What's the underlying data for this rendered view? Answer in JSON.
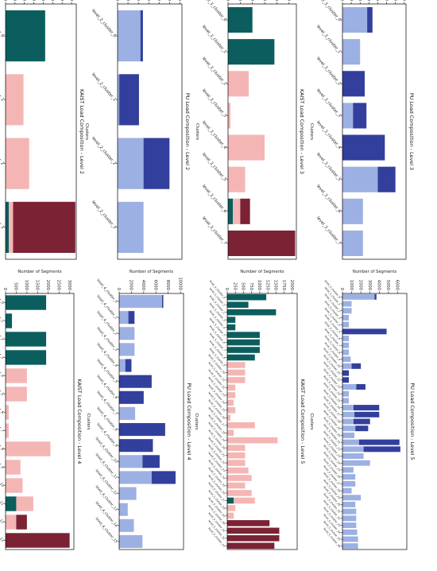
{
  "colors": {
    "teal": "#0c5e5e",
    "pink": "#f4b6b4",
    "maroon": "#7b2234",
    "lightblue": "#9db0e3",
    "darkblue": "#323f9c"
  },
  "chart_data": [
    {
      "id": "kaist-l2",
      "type": "bar",
      "title": "KAIST Load Composition - Level 2",
      "xlabel": "Clusters",
      "ylabel": "Number of Segments",
      "ylim": [
        0,
        7500
      ],
      "yticks": [
        1000,
        2000,
        3000,
        4000,
        5000,
        6000,
        7000
      ],
      "categories": [
        "level_2_cluster_0",
        "level_2_cluster_1",
        "level_2_cluster_2",
        "level_2_cluster_3"
      ],
      "series": [
        {
          "color": "#0c5e5e",
          "values": [
            4200,
            0,
            0,
            350
          ]
        },
        {
          "color": "#f4b6b4",
          "values": [
            0,
            1900,
            2500,
            450
          ]
        },
        {
          "color": "#7b2234",
          "values": [
            0,
            0,
            0,
            6600
          ]
        }
      ]
    },
    {
      "id": "pu-l2",
      "type": "bar",
      "title": "PU Load Composition - Level 2",
      "xlabel": "Clusters",
      "ylabel": "Number of Segments",
      "ylim": [
        0,
        31000
      ],
      "yticks": [
        5000,
        10000,
        15000,
        20000,
        25000,
        30000
      ],
      "categories": [
        "level_2_cluster_0",
        "level_2_cluster_1",
        "level_2_cluster_2",
        "level_2_cluster_3"
      ],
      "series": [
        {
          "color": "#9db0e3",
          "values": [
            11000,
            800,
            12500,
            12500
          ]
        },
        {
          "color": "#323f9c",
          "values": [
            1200,
            9500,
            12500,
            0
          ]
        }
      ]
    },
    {
      "id": "kaist-l3",
      "type": "bar",
      "title": "KAIST Load Composition - Level 3",
      "xlabel": "Clusters",
      "ylabel": "Number of Segments",
      "ylim": [
        0,
        5600
      ],
      "yticks": [
        1000,
        2000,
        3000,
        4000,
        5000
      ],
      "categories": [
        "level_3_cluster_0",
        "level_3_cluster_1",
        "level_3_cluster_2",
        "level_3_cluster_3",
        "level_3_cluster_4",
        "level_3_cluster_5",
        "level_3_cluster_6",
        "level_3_cluster_7"
      ],
      "series": [
        {
          "color": "#0c5e5e",
          "values": [
            2000,
            3800,
            0,
            0,
            0,
            0,
            400,
            0
          ]
        },
        {
          "color": "#f4b6b4",
          "values": [
            0,
            0,
            1700,
            200,
            3000,
            1400,
            600,
            0
          ]
        },
        {
          "color": "#7b2234",
          "values": [
            0,
            0,
            0,
            0,
            0,
            0,
            800,
            5500
          ]
        }
      ]
    },
    {
      "id": "pu-l3",
      "type": "bar",
      "title": "PU Load Composition - Level 3",
      "xlabel": "Clusters",
      "ylabel": "Number of Segments",
      "ylim": [
        0,
        18000
      ],
      "yticks": [
        2500,
        5000,
        7500,
        10000,
        12500,
        15000,
        17500
      ],
      "categories": [
        "level_3_cluster_0",
        "level_3_cluster_1",
        "level_3_cluster_2",
        "level_3_cluster_3",
        "level_3_cluster_4",
        "level_3_cluster_5",
        "level_3_cluster_6",
        "level_3_cluster_7"
      ],
      "series": [
        {
          "color": "#9db0e3",
          "values": [
            7000,
            5000,
            0,
            3000,
            0,
            10000,
            5800,
            5800
          ]
        },
        {
          "color": "#323f9c",
          "values": [
            1500,
            0,
            6300,
            3800,
            12000,
            5000,
            0,
            0
          ]
        }
      ]
    },
    {
      "id": "kaist-l4",
      "type": "bar",
      "title": "KAIST Load Composition - Level 4",
      "xlabel": "Clusters",
      "ylabel": "Number of Segments",
      "ylim": [
        0,
        3200
      ],
      "yticks": [
        500,
        1000,
        1500,
        2000,
        2500,
        3000
      ],
      "categories": [
        "level_4_cluster_0",
        "level_4_cluster_1",
        "level_4_cluster_2",
        "level_4_cluster_3",
        "level_4_cluster_4",
        "level_4_cluster_5",
        "level_4_cluster_6",
        "level_4_cluster_7",
        "level_4_cluster_8",
        "level_4_cluster_9",
        "level_4_cluster_10",
        "level_4_cluster_11",
        "level_4_cluster_12",
        "level_4_cluster_13"
      ],
      "series": [
        {
          "color": "#0c5e5e",
          "values": [
            1900,
            300,
            1900,
            1900,
            0,
            0,
            0,
            0,
            0,
            0,
            0,
            500,
            0,
            0
          ]
        },
        {
          "color": "#f4b6b4",
          "values": [
            0,
            0,
            0,
            0,
            1000,
            1000,
            150,
            150,
            2100,
            700,
            800,
            800,
            500,
            0
          ]
        },
        {
          "color": "#7b2234",
          "values": [
            0,
            0,
            0,
            0,
            0,
            0,
            0,
            0,
            0,
            0,
            0,
            0,
            500,
            3000
          ]
        }
      ]
    },
    {
      "id": "pu-l4",
      "type": "bar",
      "title": "PU Load Composition - Level 4",
      "xlabel": "Clusters",
      "ylabel": "Number of Segments",
      "ylim": [
        0,
        10500
      ],
      "yticks": [
        2000,
        4000,
        6000,
        8000,
        10000
      ],
      "categories": [
        "level_4_cluster_0",
        "level_4_cluster_1",
        "level_4_cluster_2",
        "level_4_cluster_3",
        "level_4_cluster_4",
        "level_4_cluster_5",
        "level_4_cluster_6",
        "level_4_cluster_7",
        "level_4_cluster_8",
        "level_4_cluster_9",
        "level_4_cluster_10",
        "level_4_cluster_11",
        "level_4_cluster_12",
        "level_4_cluster_13",
        "level_4_cluster_14",
        "level_4_cluster_15"
      ],
      "series": [
        {
          "color": "#9db0e3",
          "values": [
            7000,
            1500,
            2500,
            2500,
            1000,
            0,
            0,
            2600,
            0,
            0,
            3800,
            5300,
            2800,
            1400,
            2400,
            3800
          ]
        },
        {
          "color": "#323f9c",
          "values": [
            200,
            1000,
            0,
            0,
            1000,
            5300,
            4000,
            0,
            7500,
            5500,
            2800,
            3900,
            0,
            0,
            0,
            0
          ]
        }
      ]
    },
    {
      "id": "kaist-l5",
      "type": "bar",
      "title": "KAIST Load Composition - Level 5",
      "xlabel": "Clusters",
      "ylabel": "Number of Segments",
      "ylim": [
        0,
        2150
      ],
      "yticks": [
        250,
        500,
        750,
        1000,
        1250,
        1500,
        1750,
        2000
      ],
      "categories": [
        "level_5_cluster_0",
        "level_5_cluster_1",
        "level_5_cluster_2",
        "level_5_cluster_3",
        "level_5_cluster_4",
        "level_5_cluster_5",
        "level_5_cluster_6",
        "level_5_cluster_7",
        "level_5_cluster_8",
        "level_5_cluster_9",
        "level_5_cluster_10",
        "level_5_cluster_11",
        "level_5_cluster_12",
        "level_5_cluster_13",
        "level_5_cluster_14",
        "level_5_cluster_15",
        "level_5_cluster_16",
        "level_5_cluster_17",
        "level_5_cluster_18",
        "level_5_cluster_19",
        "level_5_cluster_20",
        "level_5_cluster_21",
        "level_5_cluster_22",
        "level_5_cluster_23",
        "level_5_cluster_24",
        "level_5_cluster_25",
        "level_5_cluster_26",
        "level_5_cluster_27",
        "level_5_cluster_28",
        "level_5_cluster_29",
        "level_5_cluster_30",
        "level_5_cluster_31",
        "level_5_cluster_32",
        "level_5_cluster_33"
      ],
      "series": [
        {
          "color": "#0c5e5e",
          "values": [
            1200,
            650,
            1500,
            250,
            250,
            1000,
            1000,
            1000,
            850,
            0,
            0,
            0,
            0,
            0,
            0,
            0,
            0,
            0,
            0,
            0,
            0,
            0,
            0,
            0,
            0,
            0,
            0,
            200,
            0,
            0,
            0,
            0,
            0,
            0
          ]
        },
        {
          "color": "#f4b6b4",
          "values": [
            0,
            0,
            0,
            0,
            0,
            0,
            0,
            0,
            0,
            550,
            550,
            550,
            250,
            250,
            200,
            250,
            100,
            850,
            200,
            1550,
            550,
            550,
            550,
            650,
            750,
            550,
            750,
            650,
            250,
            200,
            0,
            0,
            0,
            0
          ]
        },
        {
          "color": "#7b2234",
          "values": [
            0,
            0,
            0,
            0,
            0,
            0,
            0,
            0,
            0,
            0,
            0,
            0,
            0,
            0,
            0,
            0,
            0,
            0,
            0,
            0,
            0,
            0,
            0,
            0,
            0,
            0,
            0,
            0,
            0,
            0,
            1300,
            1600,
            1600,
            1450
          ]
        }
      ]
    },
    {
      "id": "pu-l5",
      "type": "bar",
      "title": "PU Load Composition - Level 5",
      "xlabel": "Clusters",
      "ylabel": "Number of Segments",
      "ylim": [
        0,
        7000
      ],
      "yticks": [
        1000,
        2000,
        3000,
        4000,
        5000,
        6000
      ],
      "categories": [
        "level_5_cluster_0",
        "level_5_cluster_1",
        "level_5_cluster_2",
        "level_5_cluster_3",
        "level_5_cluster_4",
        "level_5_cluster_5",
        "level_5_cluster_6",
        "level_5_cluster_7",
        "level_5_cluster_8",
        "level_5_cluster_9",
        "level_5_cluster_10",
        "level_5_cluster_11",
        "level_5_cluster_12",
        "level_5_cluster_13",
        "level_5_cluster_14",
        "level_5_cluster_15",
        "level_5_cluster_16",
        "level_5_cluster_17",
        "level_5_cluster_18",
        "level_5_cluster_19",
        "level_5_cluster_20",
        "level_5_cluster_21",
        "level_5_cluster_22",
        "level_5_cluster_23",
        "level_5_cluster_24",
        "level_5_cluster_25",
        "level_5_cluster_26",
        "level_5_cluster_27",
        "level_5_cluster_28",
        "level_5_cluster_29",
        "level_5_cluster_30",
        "level_5_cluster_31",
        "level_5_cluster_32",
        "level_5_cluster_33",
        "level_5_cluster_34",
        "level_5_cluster_35",
        "level_5_cluster_36"
      ],
      "series": [
        {
          "color": "#9db0e3",
          "values": [
            3500,
            1000,
            1000,
            700,
            700,
            0,
            700,
            700,
            700,
            900,
            1000,
            0,
            0,
            1500,
            700,
            700,
            1200,
            1300,
            1200,
            1400,
            1300,
            1800,
            2300,
            2300,
            3000,
            1200,
            1400,
            1400,
            1000,
            2000,
            1400,
            1500,
            1500,
            1500,
            1600,
            1700,
            1700
          ]
        },
        {
          "color": "#323f9c",
          "values": [
            200,
            0,
            0,
            0,
            0,
            4800,
            0,
            0,
            0,
            0,
            1000,
            700,
            700,
            1000,
            0,
            0,
            2800,
            2700,
            1800,
            1400,
            0,
            4400,
            4000,
            0,
            0,
            0,
            0,
            0,
            0,
            0,
            0,
            0,
            0,
            0,
            0,
            0,
            0
          ]
        }
      ]
    }
  ]
}
